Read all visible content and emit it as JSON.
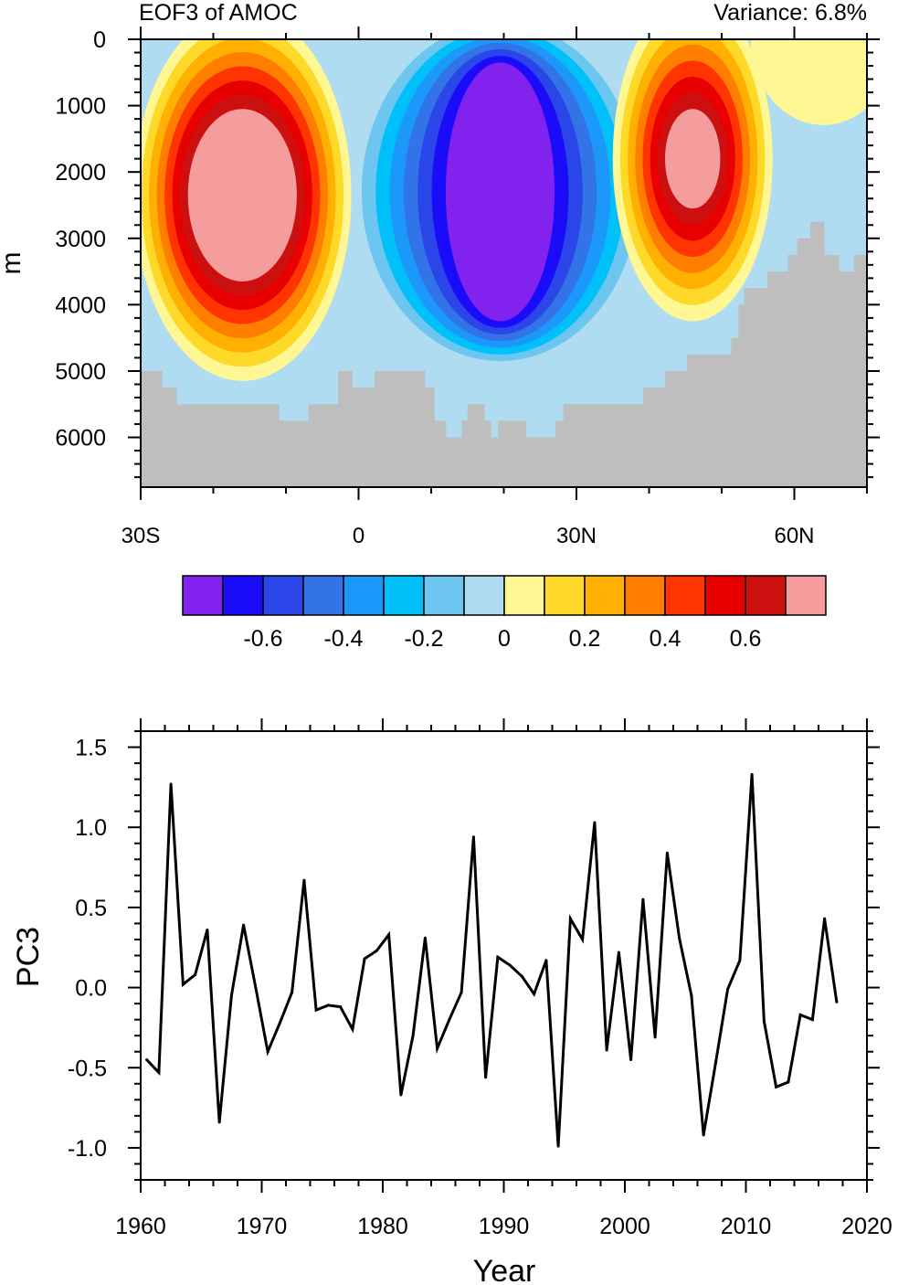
{
  "chart_data": [
    {
      "type": "heatmap",
      "title": "EOF3 of AMOC",
      "subtitle": "Variance: 6.8%",
      "xlabel": "",
      "ylabel": "m",
      "xlim": [
        -30,
        70
      ],
      "ylim": [
        6750,
        0
      ],
      "x_ticks": [
        {
          "value": -30,
          "label": "30S"
        },
        {
          "value": 0,
          "label": "0"
        },
        {
          "value": 30,
          "label": "30N"
        },
        {
          "value": 60,
          "label": "60N"
        }
      ],
      "y_ticks": [
        {
          "value": 0,
          "label": "0"
        },
        {
          "value": 1000,
          "label": "1000"
        },
        {
          "value": 2000,
          "label": "2000"
        },
        {
          "value": 3000,
          "label": "3000"
        },
        {
          "value": 4000,
          "label": "4000"
        },
        {
          "value": 5000,
          "label": "5000"
        },
        {
          "value": 6000,
          "label": "6000"
        }
      ],
      "colorbar": {
        "levels": [
          -0.7,
          -0.6,
          -0.5,
          -0.4,
          -0.3,
          -0.2,
          -0.1,
          0,
          0.1,
          0.2,
          0.3,
          0.4,
          0.5,
          0.6,
          0.7
        ],
        "labels": [
          {
            "value": -0.6,
            "label": "-0.6"
          },
          {
            "value": -0.4,
            "label": "-0.4"
          },
          {
            "value": -0.2,
            "label": "-0.2"
          },
          {
            "value": 0,
            "label": "0"
          },
          {
            "value": 0.2,
            "label": "0.2"
          },
          {
            "value": 0.4,
            "label": "0.4"
          },
          {
            "value": 0.6,
            "label": "0.6"
          }
        ],
        "colors": [
          "#8122ee",
          "#1a0cf8",
          "#2a45e8",
          "#3274e8",
          "#1b98fa",
          "#00c0fa",
          "#6cc6f0",
          "#b0dcf2",
          "#fff793",
          "#ffd92a",
          "#ffb000",
          "#ff7e00",
          "#ff3400",
          "#e80000",
          "#cc1010",
          "#f59d9d"
        ]
      },
      "cells": [
        {
          "name": "southern-positive-cell",
          "sign": 1,
          "center_lat": -16,
          "center_depth": 2350,
          "outer_half_lat": 15,
          "outer_half_depth": 2800,
          "inner_half_lat": 7.5,
          "inner_half_depth": 1300
        },
        {
          "name": "tropical-negative-cell",
          "sign": -1,
          "center_lat": 19.5,
          "center_depth": 2300,
          "outer_half_lat": 21,
          "outer_half_depth": 2650,
          "inner_half_lat": 7.5,
          "inner_half_depth": 1950
        },
        {
          "name": "northern-positive-cell",
          "sign": 1,
          "center_lat": 46,
          "center_depth": 1800,
          "outer_half_lat": 11,
          "outer_half_depth": 2450,
          "inner_half_lat": 3.8,
          "inner_half_depth": 750
        }
      ],
      "land_color": "#bebebe",
      "bathymetry": [
        [
          -30,
          5000
        ],
        [
          -27.1,
          5250
        ],
        [
          -25.1,
          5500
        ],
        [
          -11,
          5750
        ],
        [
          -6.9,
          5500
        ],
        [
          -2.8,
          5000
        ],
        [
          -0.9,
          5250
        ],
        [
          2.2,
          5000
        ],
        [
          9.1,
          5250
        ],
        [
          10.4,
          5750
        ],
        [
          12,
          6000
        ],
        [
          14.2,
          5750
        ],
        [
          15,
          5500
        ],
        [
          17.3,
          5750
        ],
        [
          18.2,
          6000
        ],
        [
          19.2,
          5750
        ],
        [
          23,
          6000
        ],
        [
          27.1,
          5750
        ],
        [
          28.2,
          5500
        ],
        [
          39.2,
          5250
        ],
        [
          42.2,
          5000
        ],
        [
          45.2,
          4750
        ],
        [
          51.3,
          4500
        ],
        [
          52.3,
          4000
        ],
        [
          53.1,
          3750
        ],
        [
          56.3,
          3500
        ],
        [
          59.1,
          3250
        ],
        [
          60.4,
          3000
        ],
        [
          62.2,
          2750
        ],
        [
          64.1,
          3250
        ],
        [
          66.1,
          3500
        ],
        [
          68.2,
          3250
        ]
      ]
    },
    {
      "type": "line",
      "title": "",
      "xlabel": "Year",
      "ylabel": "PC3",
      "xlim": [
        1960,
        2020
      ],
      "ylim": [
        -1.2,
        1.6
      ],
      "x_ticks": [
        {
          "value": 1960,
          "label": "1960"
        },
        {
          "value": 1970,
          "label": "1970"
        },
        {
          "value": 1980,
          "label": "1980"
        },
        {
          "value": 1990,
          "label": "1990"
        },
        {
          "value": 2000,
          "label": "2000"
        },
        {
          "value": 2010,
          "label": "2010"
        },
        {
          "value": 2020,
          "label": "2020"
        }
      ],
      "y_ticks": [
        {
          "value": 1.5,
          "label": "1.5"
        },
        {
          "value": 1.0,
          "label": "1.0"
        },
        {
          "value": 0.5,
          "label": "0.5"
        },
        {
          "value": 0.0,
          "label": "0.0"
        },
        {
          "value": -0.5,
          "label": "-0.5"
        },
        {
          "value": -1.0,
          "label": "-1.0"
        }
      ],
      "series": [
        {
          "name": "PC3",
          "color": "#000000",
          "x": [
            1960,
            1961,
            1962,
            1963,
            1964,
            1965,
            1966,
            1967,
            1968,
            1969,
            1970,
            1971,
            1972,
            1973,
            1974,
            1975,
            1976,
            1977,
            1978,
            1979,
            1980,
            1981,
            1982,
            1983,
            1984,
            1985,
            1986,
            1987,
            1988,
            1989,
            1990,
            1991,
            1992,
            1993,
            1994,
            1995,
            1996,
            1997,
            1998,
            1999,
            2000,
            2001,
            2002,
            2003,
            2004,
            2005,
            2006,
            2007,
            2008,
            2009,
            2010,
            2011,
            2012,
            2013,
            2014,
            2015,
            2016,
            2017
          ],
          "values": [
            -0.45,
            -0.53,
            1.27,
            0.02,
            0.08,
            0.36,
            -0.84,
            -0.05,
            0.39,
            0.0,
            -0.4,
            -0.22,
            -0.03,
            0.67,
            -0.14,
            -0.11,
            -0.12,
            -0.26,
            0.18,
            0.23,
            0.33,
            -0.67,
            -0.3,
            0.31,
            -0.38,
            -0.2,
            -0.03,
            0.94,
            -0.56,
            0.19,
            0.14,
            0.07,
            -0.04,
            0.17,
            -0.99,
            0.43,
            0.3,
            1.03,
            -0.39,
            0.22,
            -0.45,
            0.55,
            -0.31,
            0.84,
            0.31,
            -0.05,
            -0.92,
            -0.47,
            -0.01,
            0.17,
            1.33,
            -0.21,
            -0.62,
            -0.59,
            -0.17,
            -0.2,
            0.43,
            -0.09
          ]
        }
      ]
    }
  ]
}
